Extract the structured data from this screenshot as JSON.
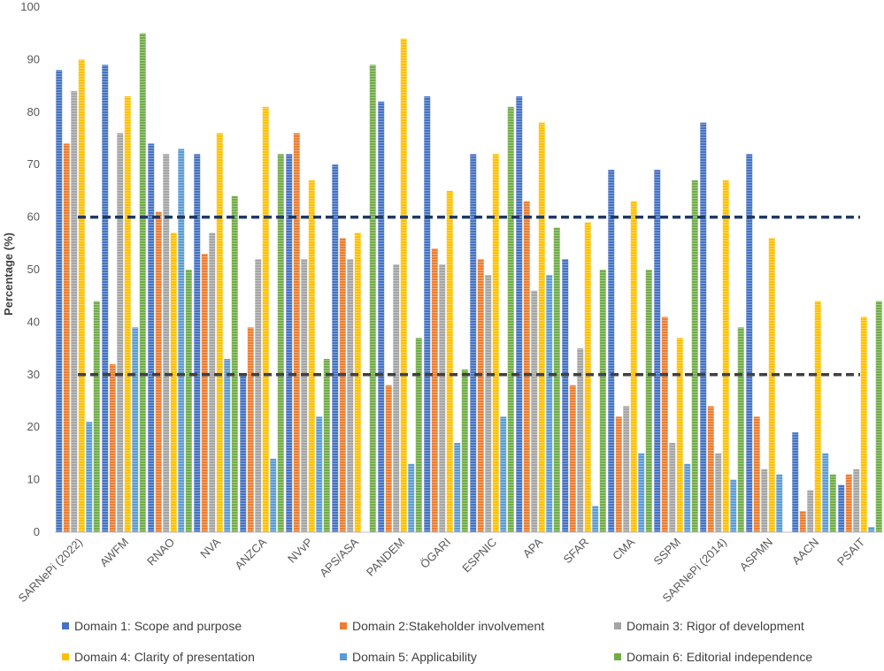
{
  "chart_data": {
    "type": "bar",
    "ylabel": "Percentage (%)",
    "xlabel": "",
    "ylim": [
      0,
      100
    ],
    "yticks": [
      "0",
      "10",
      "20",
      "30",
      "40",
      "50",
      "60",
      "70",
      "80",
      "90",
      "100"
    ],
    "grid": false,
    "categories": [
      "SARNePi (2022)",
      "AWFM",
      "RNAO",
      "NVA",
      "ANZCA",
      "NVvP",
      "APS/ASA",
      "PANDEM",
      "ÖGARI",
      "ESPNIC",
      "APA",
      "SFAR",
      "CMA",
      "SSPM",
      "SARNePi (2014)",
      "ASPMN",
      "AACN",
      "PSAIT"
    ],
    "series": [
      {
        "name": "Domain 1: Scope and purpose",
        "color": "#4472C4",
        "values": [
          88,
          89,
          74,
          72,
          30,
          72,
          70,
          82,
          83,
          72,
          83,
          52,
          69,
          69,
          78,
          72,
          19,
          9
        ]
      },
      {
        "name": "Domain 2:Stakeholder involvement",
        "color": "#ED7D31",
        "values": [
          74,
          32,
          61,
          53,
          39,
          76,
          56,
          28,
          54,
          52,
          63,
          28,
          22,
          41,
          24,
          22,
          4,
          11
        ]
      },
      {
        "name": "Domain 3: Rigor of development",
        "color": "#A5A5A5",
        "values": [
          84,
          76,
          72,
          57,
          52,
          52,
          52,
          51,
          51,
          49,
          46,
          35,
          24,
          17,
          15,
          12,
          8,
          12
        ]
      },
      {
        "name": "Domain 4: Clarity of presentation",
        "color": "#FFC000",
        "values": [
          90,
          83,
          57,
          76,
          81,
          67,
          57,
          94,
          65,
          72,
          78,
          59,
          63,
          37,
          67,
          56,
          44,
          41
        ]
      },
      {
        "name": "Domain 5: Applicability",
        "color": "#5B9BD5",
        "values": [
          21,
          39,
          73,
          33,
          14,
          22,
          0,
          13,
          17,
          22,
          49,
          5,
          15,
          13,
          10,
          11,
          15,
          1
        ]
      },
      {
        "name": "Domain 6: Editorial independence",
        "color": "#70AD47",
        "values": [
          44,
          95,
          50,
          64,
          72,
          33,
          89,
          37,
          31,
          81,
          58,
          50,
          50,
          67,
          39,
          0,
          11,
          44
        ]
      }
    ],
    "reference_lines": [
      {
        "value": 60,
        "color": "#1F3864",
        "style": "dashed"
      },
      {
        "value": 30,
        "color": "#404040",
        "style": "dashed"
      }
    ],
    "legend_position": "bottom"
  }
}
